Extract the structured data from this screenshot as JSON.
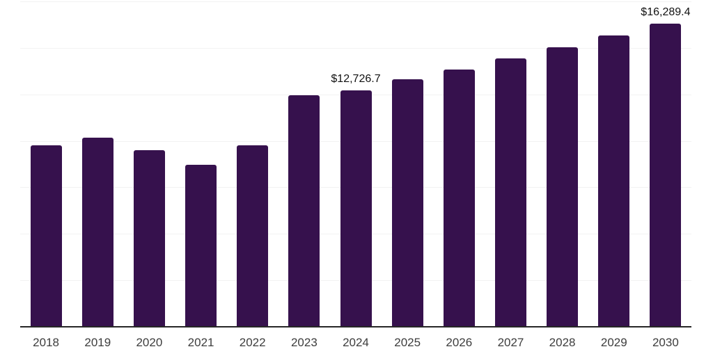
{
  "chart_data": {
    "type": "bar",
    "categories": [
      "2018",
      "2019",
      "2020",
      "2021",
      "2022",
      "2023",
      "2024",
      "2025",
      "2026",
      "2027",
      "2028",
      "2029",
      "2030"
    ],
    "values": [
      9780,
      10170,
      9500,
      8730,
      9780,
      12450,
      12726.7,
      13310,
      13840,
      14430,
      15030,
      15670,
      16289.4
    ],
    "labeled_points": [
      {
        "category": "2024",
        "label": "$12,726.7"
      },
      {
        "category": "2030",
        "label": "$16,289.4"
      }
    ],
    "title": "",
    "xlabel": "",
    "ylabel": "",
    "ylim": [
      0,
      17500
    ],
    "gridline_interval": 2500,
    "grid": "horizontal",
    "legend": "none",
    "colors": {
      "bar": "#36114d",
      "background": "#ffffff",
      "gridline": "#f2f2f2",
      "axis_line": "#262626",
      "tick_label": "#3d3d3d",
      "data_label": "#111111"
    }
  }
}
